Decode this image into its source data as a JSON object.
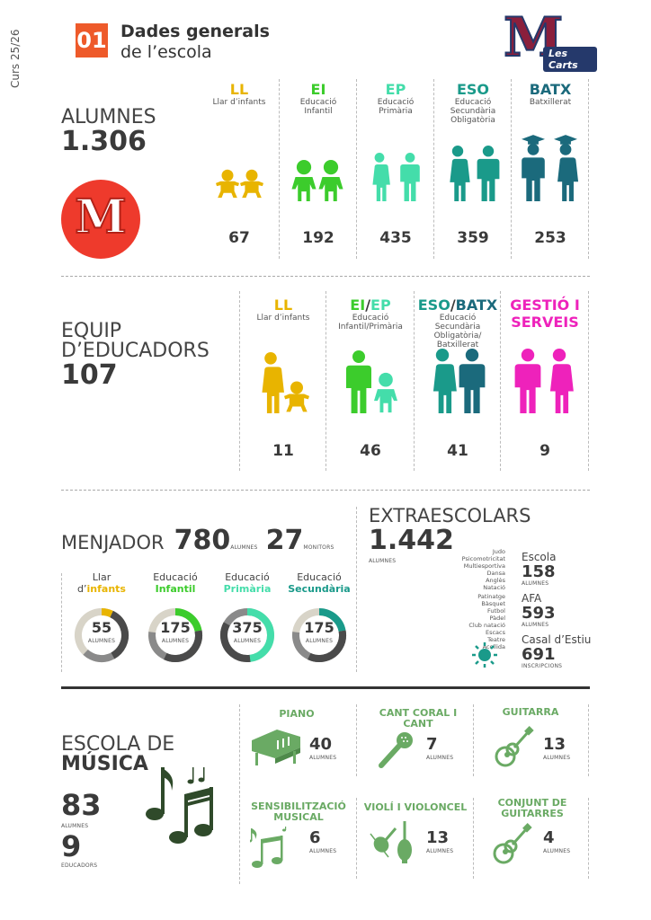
{
  "colors": {
    "ll": "#e8b400",
    "ei": "#3ccc2c",
    "ep": "#44ddaa",
    "eso": "#1a9a8a",
    "batx": "#1b6a7c",
    "gestio": "#ee22bb",
    "music": "#6aaa64",
    "red": "#ee3a2c",
    "navy": "#25396b",
    "maroon": "#8a1f3c"
  },
  "header": {
    "course": "Curs 25/26",
    "section_num": "01",
    "title_line1": "Dades generals",
    "title_line2": "de l’escola",
    "logo_letter": "M",
    "logo_text": "Les Carts"
  },
  "alumnes": {
    "label": "ALUMNES",
    "total": "1.306",
    "logo_letter": "M",
    "columns": [
      {
        "abbr": "LL",
        "desc": "Llar d’infants",
        "value": "67"
      },
      {
        "abbr": "EI",
        "desc": "Educació Infantil",
        "value": "192"
      },
      {
        "abbr": "EP",
        "desc": "Educació Primària",
        "value": "435"
      },
      {
        "abbr": "ESO",
        "desc": "Educació Secundària Obligatòria",
        "value": "359"
      },
      {
        "abbr": "BATX",
        "desc": "Batxillerat",
        "value": "253"
      }
    ]
  },
  "equip": {
    "label1": "EQUIP",
    "label2": "D’EDUCADORS",
    "total": "107",
    "columns": [
      {
        "abbr": "LL",
        "desc": "Llar d’infants",
        "value": "11"
      },
      {
        "abbr": "EI",
        "abbr2": "EP",
        "desc": "Educació Infantil/Primària",
        "value": "46"
      },
      {
        "abbr": "ESO",
        "abbr2": "BATX",
        "desc": "Educació Secundària Obligatòria/ Batxillerat",
        "value": "41"
      },
      {
        "abbr": "GESTIÓ I",
        "abbr_line2": "SERVEIS",
        "desc": "",
        "value": "9"
      }
    ]
  },
  "menjador": {
    "label": "MENJADOR",
    "alumnes": "780",
    "alumnes_unit": "ALUMNES",
    "monitors": "27",
    "monitors_unit": "MONITORS",
    "donuts": [
      {
        "line1": "Llar",
        "line2_a": "d’",
        "line2_b": "infants",
        "value": "55",
        "unit": "ALUMNES",
        "fraction": 0.07
      },
      {
        "line1": "Educació",
        "line2_b": "Infantil",
        "value": "175",
        "unit": "ALUMNES",
        "fraction": 0.22
      },
      {
        "line1": "Educació",
        "line2_b": "Primària",
        "value": "375",
        "unit": "ALUMNES",
        "fraction": 0.48
      },
      {
        "line1": "Educació",
        "line2_b": "Secundària",
        "value": "175",
        "unit": "ALUMNES",
        "fraction": 0.22
      }
    ]
  },
  "extraescolars": {
    "label": "EXTRAESCOLARS",
    "total": "1.442",
    "unit": "ALUMNES",
    "list1": [
      "Judo",
      "Psicomotricitat",
      "Multiesportiva",
      "Dansa",
      "Anglès",
      "Natació"
    ],
    "list2": [
      "Patinatge",
      "Bàsquet",
      "Futbol",
      "Pàdel",
      "Club natació",
      "Escacs",
      "Teatre",
      "Acollida"
    ],
    "stats": [
      {
        "name": "Escola",
        "value": "158",
        "unit": "ALUMNES"
      },
      {
        "name": "AFA",
        "value": "593",
        "unit": "ALUMNES"
      },
      {
        "name": "Casal d’Estiu",
        "value": "691",
        "unit": "INSCRIPCIONS"
      }
    ]
  },
  "musica": {
    "label1": "ESCOLA DE",
    "label2": "MÚSICA",
    "alumnes": "83",
    "alumnes_unit": "ALUMNES",
    "educadors": "9",
    "educadors_unit": "EDUCADORS",
    "items": [
      {
        "title": "PIANO",
        "value": "40",
        "unit": "ALUMNES",
        "icon": "piano-icon"
      },
      {
        "title": "CANT CORAL I CANT",
        "value": "7",
        "unit": "ALUMNES",
        "icon": "microphone-icon"
      },
      {
        "title": "GUITARRA",
        "value": "13",
        "unit": "ALUMNES",
        "icon": "guitar-icon"
      },
      {
        "title": "SENSIBILITZACIÓ MUSICAL",
        "value": "6",
        "unit": "ALUMNES",
        "icon": "music-notes-icon"
      },
      {
        "title": "VIOLÍ I VIOLONCEL",
        "value": "13",
        "unit": "ALUMNES",
        "icon": "violin-icon"
      },
      {
        "title": "CONJUNT DE GUITARRES",
        "value": "4",
        "unit": "ALUMNES",
        "icon": "guitar-icon"
      }
    ]
  }
}
